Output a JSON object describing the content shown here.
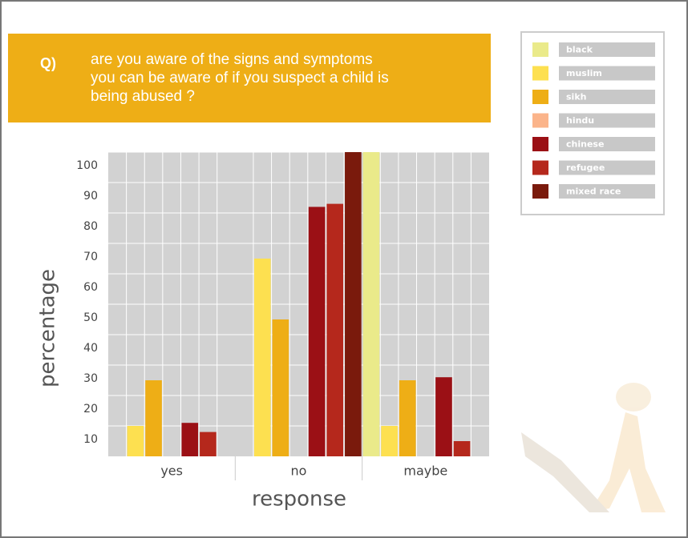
{
  "chart_data": {
    "type": "bar",
    "question_label": "Q)",
    "question": [
      "are you aware of the signs and symptoms",
      "you can be aware of if you suspect a child is",
      "being abused ?"
    ],
    "x_label": "response",
    "y_label": "percentage",
    "categories": [
      "yes",
      "no",
      "maybe"
    ],
    "series": [
      {
        "name": "black",
        "color": "#eaea8a",
        "values": [
          0,
          0,
          100
        ]
      },
      {
        "name": "muslim",
        "color": "#fde050",
        "values": [
          10,
          65,
          10
        ]
      },
      {
        "name": "sikh",
        "color": "#eeae16",
        "values": [
          25,
          45,
          25
        ]
      },
      {
        "name": "hindu",
        "color": "#fbb48a",
        "values": [
          0,
          0,
          0
        ]
      },
      {
        "name": "chinese",
        "color": "#9b1015",
        "values": [
          11,
          82,
          26
        ]
      },
      {
        "name": "refugee",
        "color": "#b5281c",
        "values": [
          8,
          83,
          5
        ]
      },
      {
        "name": "mixed race",
        "color": "#7a1a0c",
        "values": [
          0,
          100,
          0
        ]
      }
    ],
    "ylim": [
      0,
      100
    ],
    "yticks": [
      10,
      20,
      30,
      40,
      50,
      60,
      70,
      80,
      90,
      100
    ],
    "grid": true
  }
}
